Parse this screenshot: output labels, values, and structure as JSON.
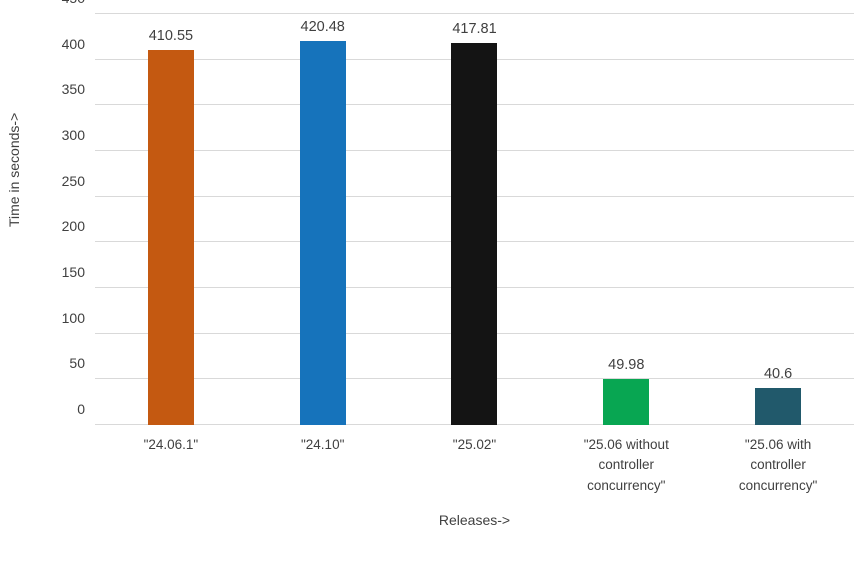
{
  "chart_data": {
    "type": "bar",
    "title": "",
    "xlabel": "Releases->",
    "ylabel": "Time in seconds->",
    "categories": [
      "\"24.06.1\"",
      "\"24.10\"",
      "\"25.02\"",
      "\"25.06 without controller concurrency\"",
      "\"25.06 with controller concurrency\""
    ],
    "values": [
      410.55,
      420.48,
      417.81,
      49.98,
      40.6
    ],
    "value_labels": [
      "410.55",
      "420.48",
      "417.81",
      "49.98",
      "40.6"
    ],
    "bar_colors": [
      "#C45911",
      "#1673BB",
      "#141414",
      "#08A652",
      "#21596B"
    ],
    "ylim": [
      0,
      450
    ],
    "ytick_step": 50,
    "grid": true,
    "gridline_color": "#D9D9D9",
    "text_color": "#404040",
    "legend": "none"
  }
}
